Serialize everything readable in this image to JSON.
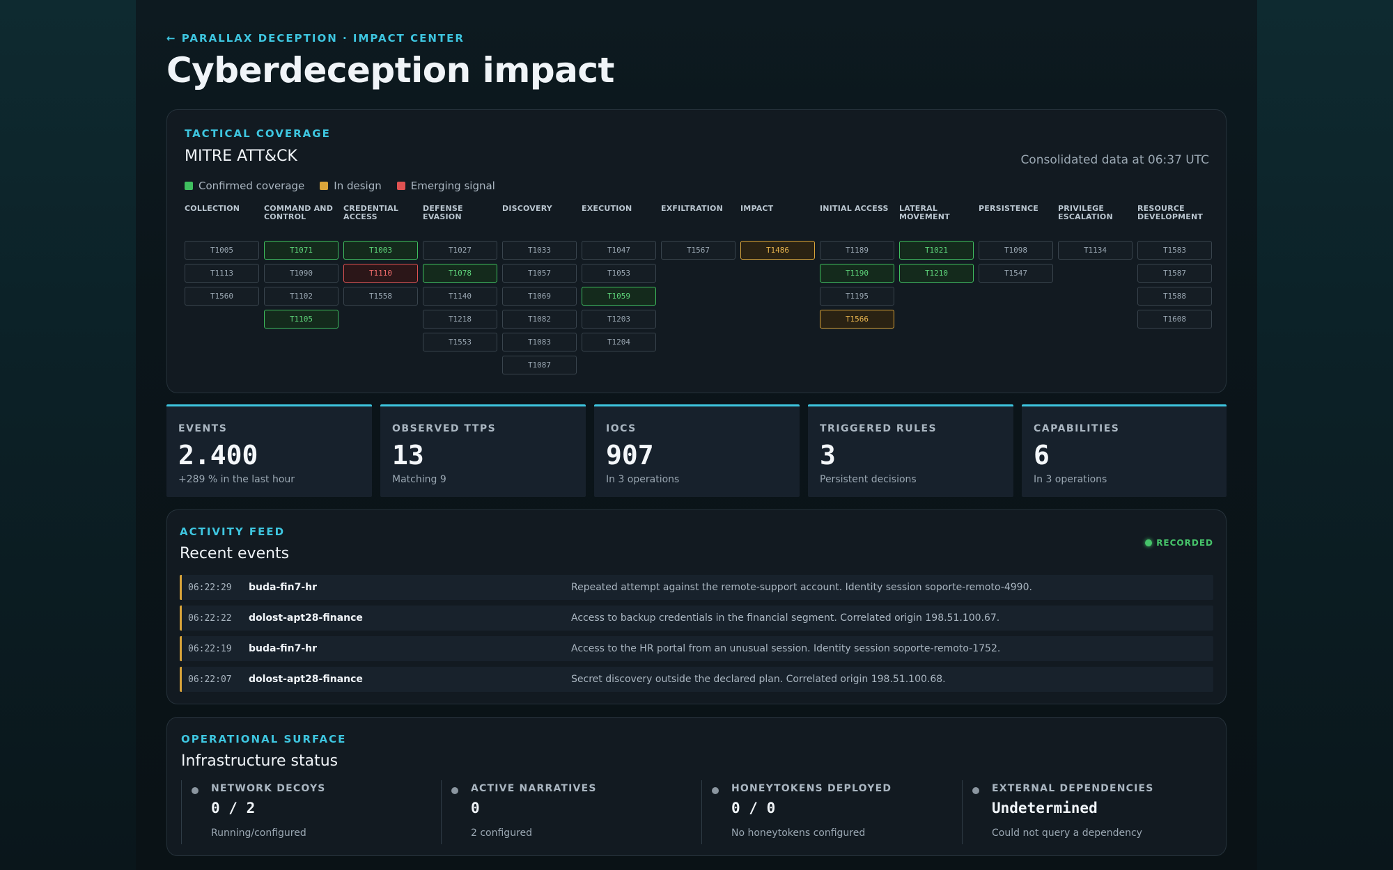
{
  "breadcrumb": "← PARALLAX DECEPTION · IMPACT CENTER",
  "page_title": "Cyberdeception impact",
  "mitre": {
    "eyebrow": "TACTICAL COVERAGE",
    "title": "MITRE ATT&CK",
    "updated": "Consolidated data at 06:37 UTC",
    "legend": [
      {
        "label": "Confirmed coverage",
        "color": "#3fbf5f"
      },
      {
        "label": "In design",
        "color": "#d9a43a"
      },
      {
        "label": "Emerging signal",
        "color": "#e05252"
      }
    ],
    "tactics": [
      {
        "name": "COLLECTION",
        "techniques": [
          {
            "id": "T1005",
            "status": "none"
          },
          {
            "id": "T1113",
            "status": "none"
          },
          {
            "id": "T1560",
            "status": "none"
          }
        ]
      },
      {
        "name": "COMMAND AND CONTROL",
        "techniques": [
          {
            "id": "T1071",
            "status": "confirmed"
          },
          {
            "id": "T1090",
            "status": "none"
          },
          {
            "id": "T1102",
            "status": "none"
          },
          {
            "id": "T1105",
            "status": "confirmed"
          }
        ]
      },
      {
        "name": "CREDENTIAL ACCESS",
        "techniques": [
          {
            "id": "T1003",
            "status": "confirmed"
          },
          {
            "id": "T1110",
            "status": "emerging"
          },
          {
            "id": "T1558",
            "status": "none"
          }
        ]
      },
      {
        "name": "DEFENSE EVASION",
        "techniques": [
          {
            "id": "T1027",
            "status": "none"
          },
          {
            "id": "T1078",
            "status": "confirmed"
          },
          {
            "id": "T1140",
            "status": "none"
          },
          {
            "id": "T1218",
            "status": "none"
          },
          {
            "id": "T1553",
            "status": "none"
          }
        ]
      },
      {
        "name": "DISCOVERY",
        "techniques": [
          {
            "id": "T1033",
            "status": "none"
          },
          {
            "id": "T1057",
            "status": "none"
          },
          {
            "id": "T1069",
            "status": "none"
          },
          {
            "id": "T1082",
            "status": "none"
          },
          {
            "id": "T1083",
            "status": "none"
          },
          {
            "id": "T1087",
            "status": "none"
          }
        ]
      },
      {
        "name": "EXECUTION",
        "techniques": [
          {
            "id": "T1047",
            "status": "none"
          },
          {
            "id": "T1053",
            "status": "none"
          },
          {
            "id": "T1059",
            "status": "confirmed"
          },
          {
            "id": "T1203",
            "status": "none"
          },
          {
            "id": "T1204",
            "status": "none"
          }
        ]
      },
      {
        "name": "EXFILTRATION",
        "techniques": [
          {
            "id": "T1567",
            "status": "none"
          }
        ]
      },
      {
        "name": "IMPACT",
        "techniques": [
          {
            "id": "T1486",
            "status": "design"
          }
        ]
      },
      {
        "name": "INITIAL ACCESS",
        "techniques": [
          {
            "id": "T1189",
            "status": "none"
          },
          {
            "id": "T1190",
            "status": "confirmed"
          },
          {
            "id": "T1195",
            "status": "none"
          },
          {
            "id": "T1566",
            "status": "design"
          }
        ]
      },
      {
        "name": "LATERAL MOVEMENT",
        "techniques": [
          {
            "id": "T1021",
            "status": "confirmed"
          },
          {
            "id": "T1210",
            "status": "confirmed"
          }
        ]
      },
      {
        "name": "PERSISTENCE",
        "techniques": [
          {
            "id": "T1098",
            "status": "none"
          },
          {
            "id": "T1547",
            "status": "none"
          }
        ]
      },
      {
        "name": "PRIVILEGE ESCALATION",
        "techniques": [
          {
            "id": "T1134",
            "status": "none"
          }
        ]
      },
      {
        "name": "RESOURCE DEVELOPMENT",
        "techniques": [
          {
            "id": "T1583",
            "status": "none"
          },
          {
            "id": "T1587",
            "status": "none"
          },
          {
            "id": "T1588",
            "status": "none"
          },
          {
            "id": "T1608",
            "status": "none"
          }
        ]
      }
    ]
  },
  "stats": [
    {
      "label": "EVENTS",
      "value": "2.400",
      "sub": "+289 % in the last hour"
    },
    {
      "label": "OBSERVED TTPS",
      "value": "13",
      "sub": "Matching 9"
    },
    {
      "label": "IOCS",
      "value": "907",
      "sub": "In 3 operations"
    },
    {
      "label": "TRIGGERED RULES",
      "value": "3",
      "sub": "Persistent decisions"
    },
    {
      "label": "CAPABILITIES",
      "value": "6",
      "sub": "In 3 operations"
    }
  ],
  "activity": {
    "eyebrow": "ACTIVITY FEED",
    "title": "Recent events",
    "status": "RECORDED",
    "events": [
      {
        "time": "06:22:29",
        "actor": "buda-fin7-hr",
        "message": "Repeated attempt against the remote-support account. Identity session soporte-remoto-4990."
      },
      {
        "time": "06:22:22",
        "actor": "dolost-apt28-finance",
        "message": "Access to backup credentials in the financial segment. Correlated origin 198.51.100.67."
      },
      {
        "time": "06:22:19",
        "actor": "buda-fin7-hr",
        "message": "Access to the HR portal from an unusual session. Identity session soporte-remoto-1752."
      },
      {
        "time": "06:22:07",
        "actor": "dolost-apt28-finance",
        "message": "Secret discovery outside the declared plan. Correlated origin 198.51.100.68."
      }
    ]
  },
  "infra": {
    "eyebrow": "OPERATIONAL SURFACE",
    "title": "Infrastructure status",
    "metrics": [
      {
        "label": "NETWORK DECOYS",
        "value": "0 / 2",
        "sub": "Running/configured"
      },
      {
        "label": "ACTIVE NARRATIVES",
        "value": "0",
        "sub": "2 configured"
      },
      {
        "label": "HONEYTOKENS DEPLOYED",
        "value": "0 / 0",
        "sub": "No honeytokens configured"
      },
      {
        "label": "EXTERNAL DEPENDENCIES",
        "value": "Undetermined",
        "sub": "Could not query a dependency"
      }
    ]
  }
}
